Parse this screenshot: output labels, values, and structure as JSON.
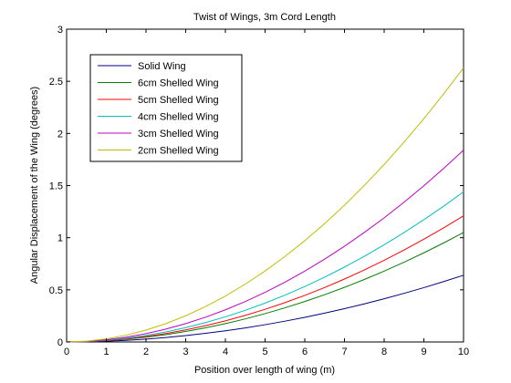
{
  "chart_data": {
    "type": "line",
    "title": "Twist of Wings, 3m Cord Length",
    "xlabel": "Position over length of wing (m)",
    "ylabel": "Angular Displacement of the Wing (degrees)",
    "xlim": [
      0,
      10
    ],
    "ylim": [
      0,
      3
    ],
    "xticks": [
      "0",
      "1",
      "2",
      "3",
      "4",
      "5",
      "6",
      "7",
      "8",
      "9",
      "10"
    ],
    "yticks": [
      "0",
      "0.5",
      "1",
      "1.5",
      "2",
      "2.5",
      "3"
    ],
    "grid": false,
    "legend_position": "top-left",
    "x": [
      0,
      0.5,
      1,
      1.5,
      2,
      2.5,
      3,
      3.5,
      4,
      4.5,
      5,
      5.5,
      6,
      6.5,
      7,
      7.5,
      8,
      8.5,
      9,
      9.5,
      10
    ],
    "series": [
      {
        "name": "Solid Wing",
        "color": "#00007f",
        "end": 0.64
      },
      {
        "name": "6cm Shelled Wing",
        "color": "#007f00",
        "end": 1.05
      },
      {
        "name": "5cm Shelled Wing",
        "color": "#ff0000",
        "end": 1.21
      },
      {
        "name": "4cm Shelled Wing",
        "color": "#00bfbf",
        "end": 1.44
      },
      {
        "name": "3cm Shelled Wing",
        "color": "#bf00bf",
        "end": 1.84
      },
      {
        "name": "2cm Shelled Wing",
        "color": "#bfbf00",
        "end": 2.63
      }
    ]
  }
}
